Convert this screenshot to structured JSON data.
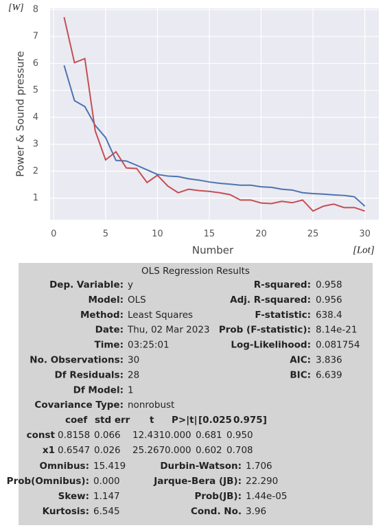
{
  "chart_data": {
    "type": "line",
    "y_label": "Power & Sound pressure",
    "x_label": "Number",
    "annotations": [
      "[W]",
      "[Lot]"
    ],
    "x": [
      1,
      2,
      3,
      4,
      5,
      6,
      7,
      8,
      9,
      10,
      11,
      12,
      13,
      14,
      15,
      16,
      17,
      18,
      19,
      20,
      21,
      22,
      23,
      24,
      25,
      26,
      27,
      28,
      29,
      30
    ],
    "series": [
      {
        "color": "#4c72b0",
        "values": [
          5.93,
          4.62,
          4.4,
          3.7,
          3.25,
          2.4,
          2.38,
          2.22,
          2.05,
          1.88,
          1.82,
          1.8,
          1.72,
          1.67,
          1.6,
          1.55,
          1.52,
          1.48,
          1.48,
          1.42,
          1.4,
          1.33,
          1.3,
          1.2,
          1.17,
          1.15,
          1.12,
          1.1,
          1.05,
          0.7
        ]
      },
      {
        "color": "#c44e52",
        "values": [
          7.72,
          6.03,
          6.18,
          3.5,
          2.42,
          2.72,
          2.12,
          2.1,
          1.58,
          1.85,
          1.45,
          1.2,
          1.33,
          1.28,
          1.25,
          1.2,
          1.13,
          0.93,
          0.93,
          0.82,
          0.8,
          0.88,
          0.83,
          0.93,
          0.52,
          0.7,
          0.78,
          0.65,
          0.65,
          0.52
        ]
      }
    ],
    "xlim": [
      -0.35,
      31.35
    ],
    "xticks": [
      0,
      5,
      10,
      15,
      20,
      25,
      30
    ],
    "ylim": [
      0.2,
      8.05
    ],
    "yticks": [
      1,
      2,
      3,
      4,
      5,
      6,
      7,
      8
    ],
    "grid": true
  },
  "ols": {
    "title": "OLS Regression Results",
    "top_rows": [
      [
        "Dep. Variable:",
        "y",
        "R-squared:",
        "0.958"
      ],
      [
        "Model:",
        "OLS",
        "Adj. R-squared:",
        "0.956"
      ],
      [
        "Method:",
        "Least Squares",
        "F-statistic:",
        "638.4"
      ],
      [
        "Date:",
        "Thu, 02 Mar 2023",
        "Prob (F-statistic):",
        "8.14e-21"
      ],
      [
        "Time:",
        "03:25:01",
        "Log-Likelihood:",
        "0.081754"
      ],
      [
        "No. Observations:",
        "30",
        "AIC:",
        "3.836"
      ],
      [
        "Df Residuals:",
        "28",
        "BIC:",
        "6.639"
      ],
      [
        "Df Model:",
        "1"
      ],
      [
        "Covariance Type:",
        "nonrobust"
      ]
    ],
    "coef_header": [
      "coef",
      "std err",
      "t",
      "P>|t|",
      "[0.025",
      "0.975]"
    ],
    "coef_rows": [
      [
        "const",
        "0.8158",
        "0.066",
        "12.431",
        "0.000",
        "0.681",
        "0.950"
      ],
      [
        "x1",
        "0.6547",
        "0.026",
        "25.267",
        "0.000",
        "0.602",
        "0.708"
      ]
    ],
    "bottom_rows": [
      [
        "Omnibus:",
        "15.419",
        "Durbin-Watson:",
        "1.706"
      ],
      [
        "Prob(Omnibus):",
        "0.000",
        "Jarque-Bera (JB):",
        "22.290"
      ],
      [
        "Skew:",
        "1.147",
        "Prob(JB):",
        "1.44e-05"
      ],
      [
        "Kurtosis:",
        "6.545",
        "Cond. No.",
        "3.96"
      ]
    ]
  }
}
